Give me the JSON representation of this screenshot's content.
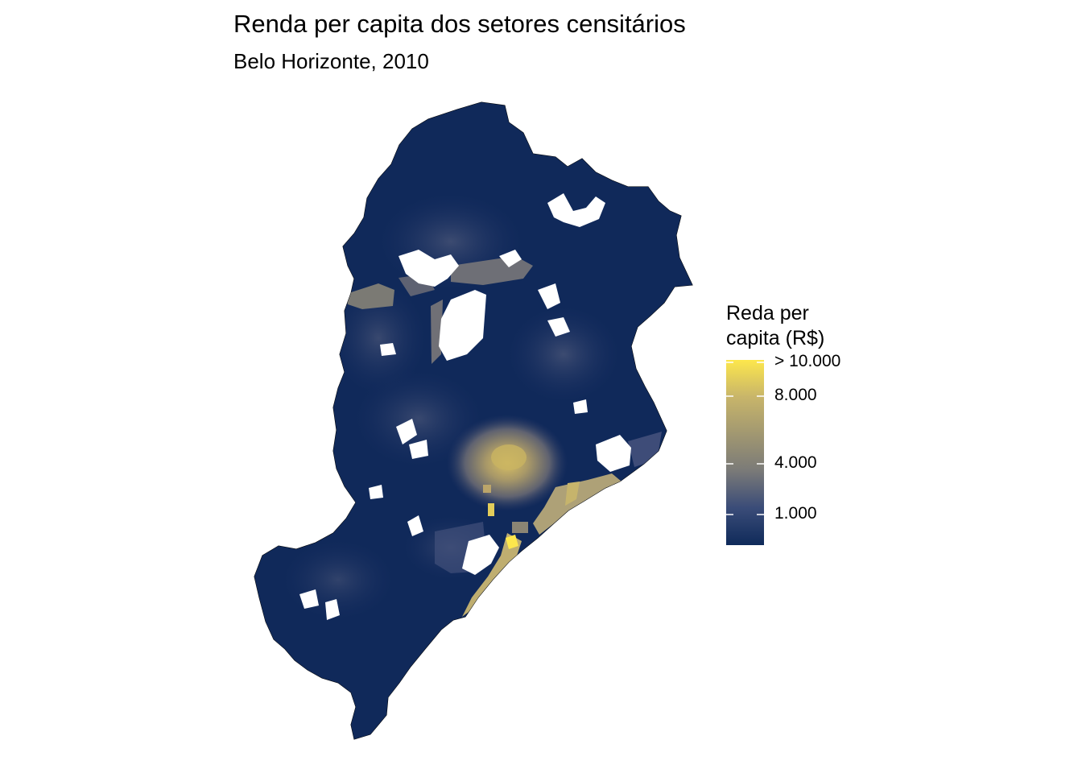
{
  "title": "Renda per capita dos setores censitários",
  "subtitle": "Belo Horizonte, 2010",
  "legend": {
    "title_line1": "Reda per",
    "title_line2": "capita (R$)",
    "min_value": 0,
    "max_value": 10000,
    "ticks": [
      {
        "value": 10000,
        "label": "> 10.000"
      },
      {
        "value": 8000,
        "label": "8.000"
      },
      {
        "value": 4000,
        "label": "4.000"
      },
      {
        "value": 1000,
        "label": "1.000"
      }
    ],
    "colors": {
      "low": "#0f2a5a",
      "mid": "#7a7a78",
      "high": "#fde74c"
    }
  },
  "map": {
    "region": "Belo Horizonte",
    "base_color": "#10295a",
    "outline_color": "#000000"
  }
}
